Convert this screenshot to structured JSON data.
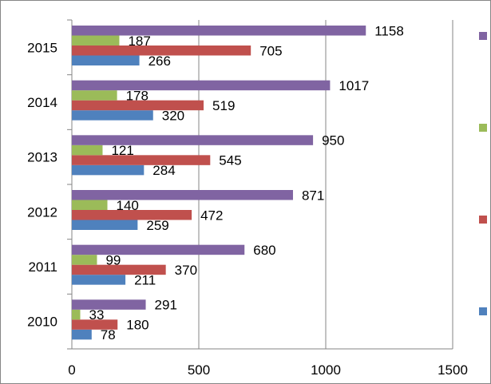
{
  "chart_data": {
    "type": "bar",
    "orientation": "horizontal",
    "categories": [
      "2010",
      "2011",
      "2012",
      "2013",
      "2014",
      "2015"
    ],
    "series": [
      {
        "values": [
          78,
          211,
          259,
          284,
          320,
          266
        ],
        "color": "#4F81BD"
      },
      {
        "values": [
          180,
          370,
          472,
          545,
          519,
          705
        ],
        "color": "#C0504D"
      },
      {
        "values": [
          33,
          99,
          140,
          121,
          178,
          187
        ],
        "color": "#9BBB59"
      },
      {
        "values": [
          291,
          680,
          871,
          950,
          1017,
          1158
        ],
        "color": "#8064A2"
      }
    ],
    "xlim": [
      0,
      1500
    ],
    "xticks": [
      "0",
      "500",
      "1000",
      "1500"
    ],
    "grid": true,
    "data_labels": true,
    "legend_position": "right",
    "title": "",
    "xlabel": "",
    "ylabel": ""
  }
}
